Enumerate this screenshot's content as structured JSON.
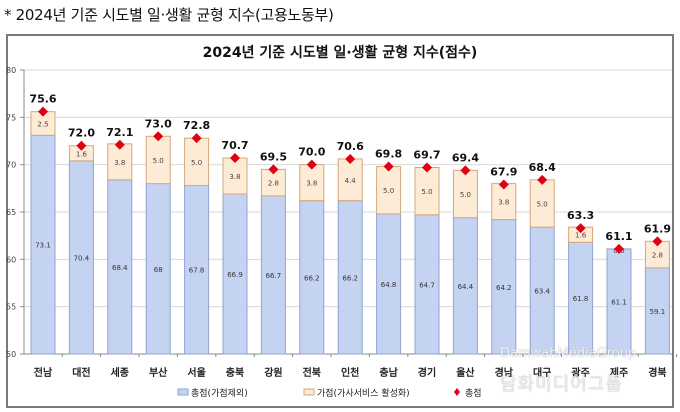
{
  "caption": "* 2024년 기준 시도별 일·생활 균형 지수(고용노동부)",
  "chart_data": {
    "type": "bar",
    "stacked": true,
    "title": "2024년 기준 시도별 일·생활 균형 지수(점수)",
    "xlabel": "",
    "ylabel": "",
    "ylim": [
      50,
      80
    ],
    "yticks": [
      50,
      55,
      60,
      65,
      70,
      75,
      80
    ],
    "grid": true,
    "legend_position": "bottom",
    "categories": [
      "전남",
      "대전",
      "세종",
      "부산",
      "서울",
      "충북",
      "강원",
      "전북",
      "인천",
      "충남",
      "경기",
      "울산",
      "경남",
      "대구",
      "광주",
      "제주",
      "경북"
    ],
    "series": [
      {
        "name": "총점(가점제외)",
        "color": "#c5d3f3",
        "values": [
          73.1,
          70.4,
          68.4,
          68,
          67.8,
          66.9,
          66.7,
          66.2,
          66.2,
          64.8,
          64.7,
          64.4,
          64.2,
          63.4,
          61.8,
          61.1,
          59.1
        ]
      },
      {
        "name": "가점(가사서비스 활성화)",
        "color": "#fdebd6",
        "values": [
          2.5,
          1.6,
          3.8,
          5.0,
          5.0,
          3.8,
          2.8,
          3.8,
          4.4,
          5.0,
          5.0,
          5.0,
          3.8,
          5.0,
          1.6,
          0.0,
          2.8
        ]
      },
      {
        "name": "총점",
        "type": "marker",
        "color": "#e0000f",
        "values": [
          75.6,
          72.0,
          72.1,
          73.0,
          72.8,
          70.7,
          69.5,
          70.0,
          70.6,
          69.8,
          69.7,
          69.4,
          67.9,
          68.4,
          63.3,
          61.1,
          61.9
        ]
      }
    ],
    "base_labels": [
      "73.1",
      "70.4",
      "68.4",
      "68",
      "67.8",
      "66.9",
      "66.7",
      "66.2",
      "66.2",
      "64.8",
      "64.7",
      "64.4",
      "64.2",
      "63.4",
      "61.8",
      "61.1",
      "59.1"
    ],
    "bonus_labels": [
      "2.5",
      "1.6",
      "3.8",
      "5.0",
      "5.0",
      "3.8",
      "2.8",
      "3.8",
      "4.4",
      "5.0",
      "5.0",
      "5.0",
      "3.8",
      "5.0",
      "1.6",
      "0.0",
      "2.8"
    ],
    "total_labels": [
      "75.6",
      "72.0",
      "72.1",
      "73.0",
      "72.8",
      "70.7",
      "69.5",
      "70.0",
      "70.6",
      "69.8",
      "69.7",
      "69.4",
      "67.9",
      "68.4",
      "63.3",
      "61.1",
      "61.9"
    ]
  },
  "legend": [
    {
      "label": "총점(가점제외)",
      "swatch": "#c5d3f3"
    },
    {
      "label": "가점(가사서비스 활성화)",
      "swatch": "#fdebd6"
    },
    {
      "label": "총점",
      "swatch": "#e0000f"
    }
  ],
  "watermark": {
    "line1": "DamwahMediaGroup",
    "line2": "담화미디어그룹"
  }
}
